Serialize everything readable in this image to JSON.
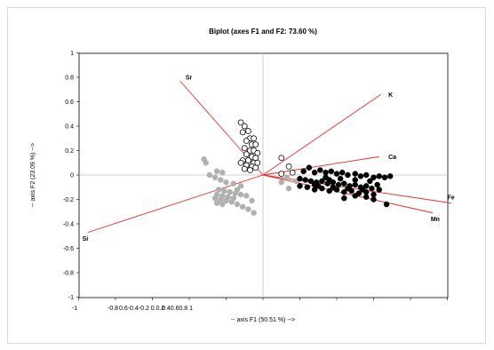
{
  "chart_data": {
    "type": "scatter",
    "title": "Biplot (axes F1 and F2: 73.60 %)",
    "xlabel": "-- axis F1 (50.51 %) -->",
    "ylabel": "-- axis F2 (23.09 %) -->",
    "xlim": [
      -1,
      1
    ],
    "ylim": [
      -1,
      1
    ],
    "x_tick_labels": [
      "-1",
      "-0.8",
      "-0.6",
      "-0.4",
      "-0.2",
      "0",
      "0.2",
      "0.4",
      "0.6",
      "0.8",
      "1"
    ],
    "y_tick_labels": [
      "-1",
      "-0.8",
      "-0.6",
      "-0.4",
      "-0.2",
      "0",
      "0.2",
      "0.4",
      "0.6",
      "0.8",
      "1"
    ],
    "x_tick_text": "-0.8",
    "x_tick_text_rest": "0.6-0.4-0.2  0.0.2",
    "x_tick_text_tail": "0.40.60.8  1",
    "colors": {
      "vector": "#e0302a",
      "group_open_stroke": "#000000",
      "group_grey": "#b0b0b0",
      "group_black": "#000000"
    },
    "vectors": [
      {
        "name": "Sr",
        "x": -0.45,
        "y": 0.77
      },
      {
        "name": "K",
        "x": 0.64,
        "y": 0.66
      },
      {
        "name": "Ca",
        "x": 0.63,
        "y": 0.15
      },
      {
        "name": "Fe",
        "x": 1.02,
        "y": -0.23
      },
      {
        "name": "Mn",
        "x": 0.92,
        "y": -0.31
      },
      {
        "name": "Si",
        "x": -0.95,
        "y": -0.47
      }
    ],
    "series": [
      {
        "style": "open",
        "points": [
          [
            -0.12,
            0.43
          ],
          [
            -0.1,
            0.4
          ],
          [
            -0.08,
            0.36
          ],
          [
            -0.11,
            0.35
          ],
          [
            -0.07,
            0.3
          ],
          [
            -0.05,
            0.3
          ],
          [
            -0.09,
            0.28
          ],
          [
            -0.06,
            0.25
          ],
          [
            -0.04,
            0.25
          ],
          [
            -0.1,
            0.22
          ],
          [
            -0.07,
            0.2
          ],
          [
            -0.05,
            0.2
          ],
          [
            -0.03,
            0.18
          ],
          [
            -0.09,
            0.17
          ],
          [
            -0.06,
            0.15
          ],
          [
            -0.04,
            0.14
          ],
          [
            -0.11,
            0.12
          ],
          [
            -0.08,
            0.12
          ],
          [
            -0.05,
            0.1
          ],
          [
            -0.03,
            0.1
          ],
          [
            -0.09,
            0.08
          ],
          [
            -0.06,
            0.07
          ],
          [
            -0.1,
            0.05
          ],
          [
            -0.07,
            0.04
          ],
          [
            -0.12,
            0.1
          ],
          [
            -0.04,
            0.06
          ],
          [
            0.1,
            0.14
          ],
          [
            0.14,
            0.07
          ],
          [
            0.1,
            0.01
          ],
          [
            0.16,
            0.02
          ]
        ]
      },
      {
        "style": "grey",
        "points": [
          [
            -0.32,
            0.13
          ],
          [
            -0.31,
            0.1
          ],
          [
            -0.25,
            0.03
          ],
          [
            -0.22,
            0.02
          ],
          [
            -0.29,
            0.0
          ],
          [
            -0.26,
            -0.02
          ],
          [
            -0.23,
            -0.04
          ],
          [
            -0.2,
            -0.06
          ],
          [
            -0.16,
            -0.07
          ],
          [
            -0.12,
            -0.09
          ],
          [
            -0.24,
            -0.12
          ],
          [
            -0.21,
            -0.13
          ],
          [
            -0.18,
            -0.14
          ],
          [
            -0.15,
            -0.15
          ],
          [
            -0.12,
            -0.16
          ],
          [
            -0.25,
            -0.16
          ],
          [
            -0.22,
            -0.17
          ],
          [
            -0.19,
            -0.18
          ],
          [
            -0.16,
            -0.19
          ],
          [
            -0.26,
            -0.19
          ],
          [
            -0.23,
            -0.2
          ],
          [
            -0.2,
            -0.21
          ],
          [
            -0.17,
            -0.22
          ],
          [
            -0.25,
            -0.23
          ],
          [
            -0.22,
            -0.24
          ],
          [
            -0.14,
            -0.24
          ],
          [
            -0.11,
            -0.26
          ],
          [
            -0.08,
            -0.28
          ],
          [
            -0.05,
            -0.31
          ],
          [
            -0.14,
            -0.12
          ],
          [
            -0.09,
            -0.17
          ],
          [
            -0.06,
            -0.21
          ],
          [
            0.14,
            -0.11
          ],
          [
            0.1,
            -0.06
          ],
          [
            0.18,
            -0.05
          ],
          [
            0.13,
            -0.02
          ]
        ]
      },
      {
        "style": "black",
        "points": [
          [
            0.22,
            0.03
          ],
          [
            0.25,
            0.06
          ],
          [
            0.28,
            0.02
          ],
          [
            0.31,
            0.04
          ],
          [
            0.34,
            0.02
          ],
          [
            0.37,
            0.03
          ],
          [
            0.4,
            0.01
          ],
          [
            0.43,
            0.02
          ],
          [
            0.46,
            0.0
          ],
          [
            0.5,
            0.01
          ],
          [
            0.53,
            -0.01
          ],
          [
            0.56,
            0.0
          ],
          [
            0.6,
            -0.02
          ],
          [
            0.63,
            -0.01
          ],
          [
            0.66,
            -0.02
          ],
          [
            0.69,
            -0.01
          ],
          [
            0.2,
            -0.03
          ],
          [
            0.23,
            -0.04
          ],
          [
            0.26,
            -0.05
          ],
          [
            0.29,
            -0.06
          ],
          [
            0.32,
            -0.05
          ],
          [
            0.35,
            -0.07
          ],
          [
            0.38,
            -0.06
          ],
          [
            0.41,
            -0.08
          ],
          [
            0.44,
            -0.07
          ],
          [
            0.47,
            -0.09
          ],
          [
            0.5,
            -0.08
          ],
          [
            0.53,
            -0.1
          ],
          [
            0.56,
            -0.09
          ],
          [
            0.59,
            -0.11
          ],
          [
            0.2,
            -0.09
          ],
          [
            0.24,
            -0.1
          ],
          [
            0.28,
            -0.12
          ],
          [
            0.32,
            -0.11
          ],
          [
            0.36,
            -0.13
          ],
          [
            0.4,
            -0.12
          ],
          [
            0.44,
            -0.14
          ],
          [
            0.48,
            -0.13
          ],
          [
            0.52,
            -0.15
          ],
          [
            0.56,
            -0.14
          ],
          [
            0.6,
            -0.16
          ],
          [
            0.34,
            -0.02
          ],
          [
            0.42,
            -0.03
          ],
          [
            0.5,
            -0.04
          ],
          [
            0.58,
            -0.05
          ],
          [
            0.3,
            -0.09
          ],
          [
            0.46,
            -0.11
          ],
          [
            0.62,
            -0.08
          ],
          [
            0.44,
            -0.19
          ],
          [
            0.5,
            -0.17
          ],
          [
            0.56,
            -0.18
          ],
          [
            0.6,
            -0.2
          ],
          [
            0.54,
            -0.12
          ],
          [
            0.28,
            -0.08
          ],
          [
            0.38,
            -0.1
          ],
          [
            0.67,
            -0.24
          ],
          [
            0.63,
            -0.12
          ],
          [
            0.36,
            -0.04
          ]
        ]
      }
    ]
  }
}
